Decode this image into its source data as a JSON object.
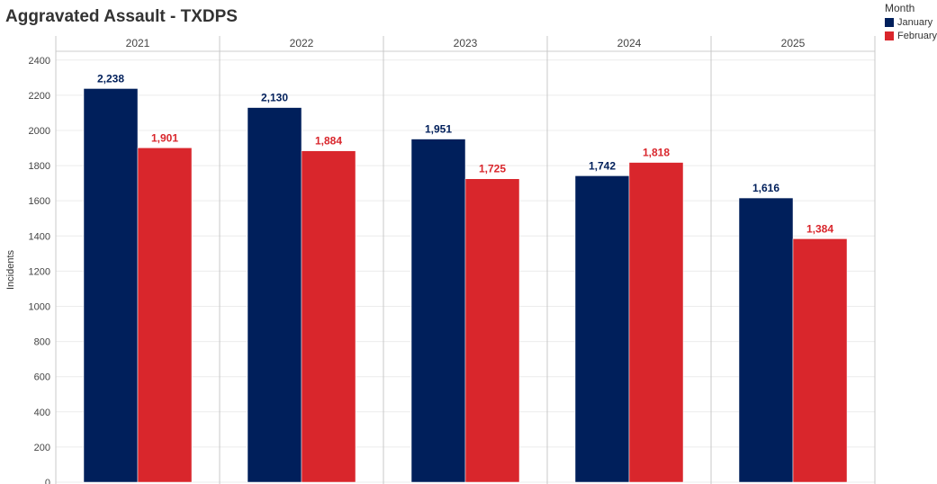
{
  "title": "Aggravated Assault - TXDPS",
  "legend": {
    "title": "Month",
    "items": [
      {
        "label": "January",
        "color": "#001f5b"
      },
      {
        "label": "February",
        "color": "#d9262c"
      }
    ]
  },
  "chart_data": {
    "type": "bar",
    "title": "Aggravated Assault - TXDPS",
    "xlabel": "",
    "ylabel": "Incidents",
    "categories": [
      "2021",
      "2022",
      "2023",
      "2024",
      "2025"
    ],
    "series": [
      {
        "name": "January",
        "color": "#001f5b",
        "values": [
          2238,
          2130,
          1951,
          1742,
          1616
        ],
        "labels": [
          "2,238",
          "2,130",
          "1,951",
          "1,742",
          "1,616"
        ]
      },
      {
        "name": "February",
        "color": "#d9262c",
        "values": [
          1901,
          1884,
          1725,
          1818,
          1384
        ],
        "labels": [
          "1,901",
          "1,884",
          "1,725",
          "1,818",
          "1,384"
        ]
      }
    ],
    "ylim": [
      0,
      2450
    ],
    "yticks": [
      0,
      200,
      400,
      600,
      800,
      1000,
      1200,
      1400,
      1600,
      1800,
      2000,
      2200,
      2400
    ],
    "grid": true,
    "legend_position": "top-right"
  }
}
